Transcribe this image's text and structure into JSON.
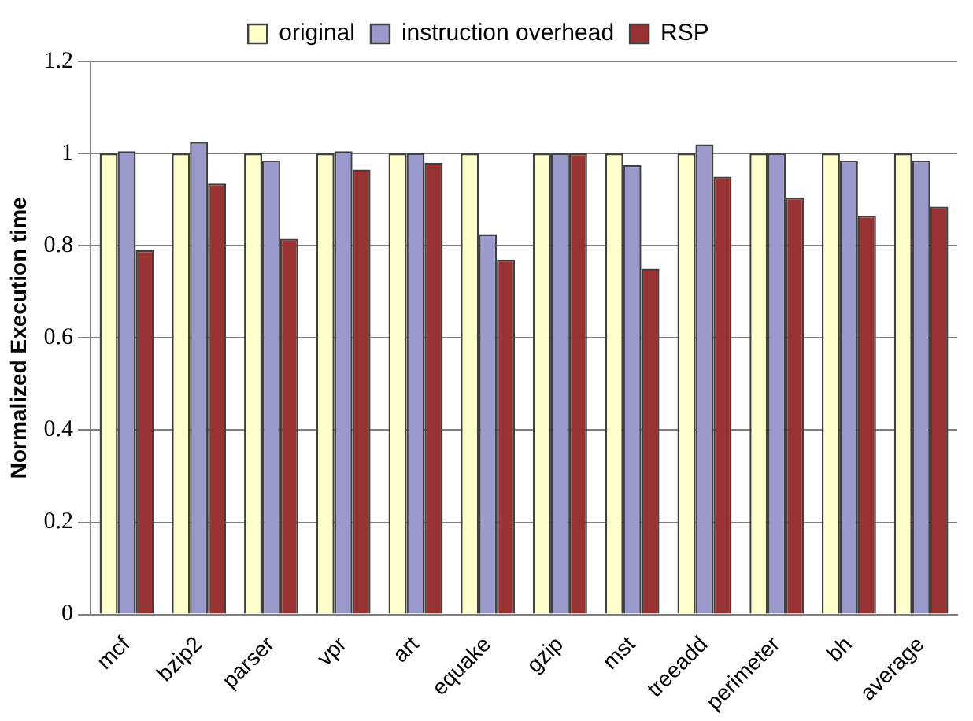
{
  "chart_data": {
    "type": "bar",
    "ylabel": "Normalized Execution time",
    "categories": [
      "mcf",
      "bzip2",
      "parser",
      "vpr",
      "art",
      "equake",
      "gzip",
      "mst",
      "treeadd",
      "perimeter",
      "bh",
      "average"
    ],
    "series": [
      {
        "name": "original",
        "color": "#ffffcc",
        "values": [
          1,
          1,
          1,
          1,
          1,
          1,
          1,
          1,
          1,
          1,
          1,
          1
        ]
      },
      {
        "name": "instruction overhead",
        "color": "#9999cc",
        "values": [
          1.005,
          1.025,
          0.985,
          1.005,
          1,
          0.825,
          1,
          0.975,
          1.02,
          1,
          0.985,
          0.985
        ]
      },
      {
        "name": "RSP",
        "color": "#993333",
        "values": [
          0.79,
          0.935,
          0.815,
          0.965,
          0.98,
          0.77,
          1,
          0.75,
          0.95,
          0.905,
          0.865,
          0.885
        ]
      }
    ],
    "ylim": [
      0,
      1.2
    ],
    "yticks": [
      0,
      0.2,
      0.4,
      0.6,
      0.8,
      1,
      1.2
    ],
    "grid": "y",
    "legend": "top"
  }
}
